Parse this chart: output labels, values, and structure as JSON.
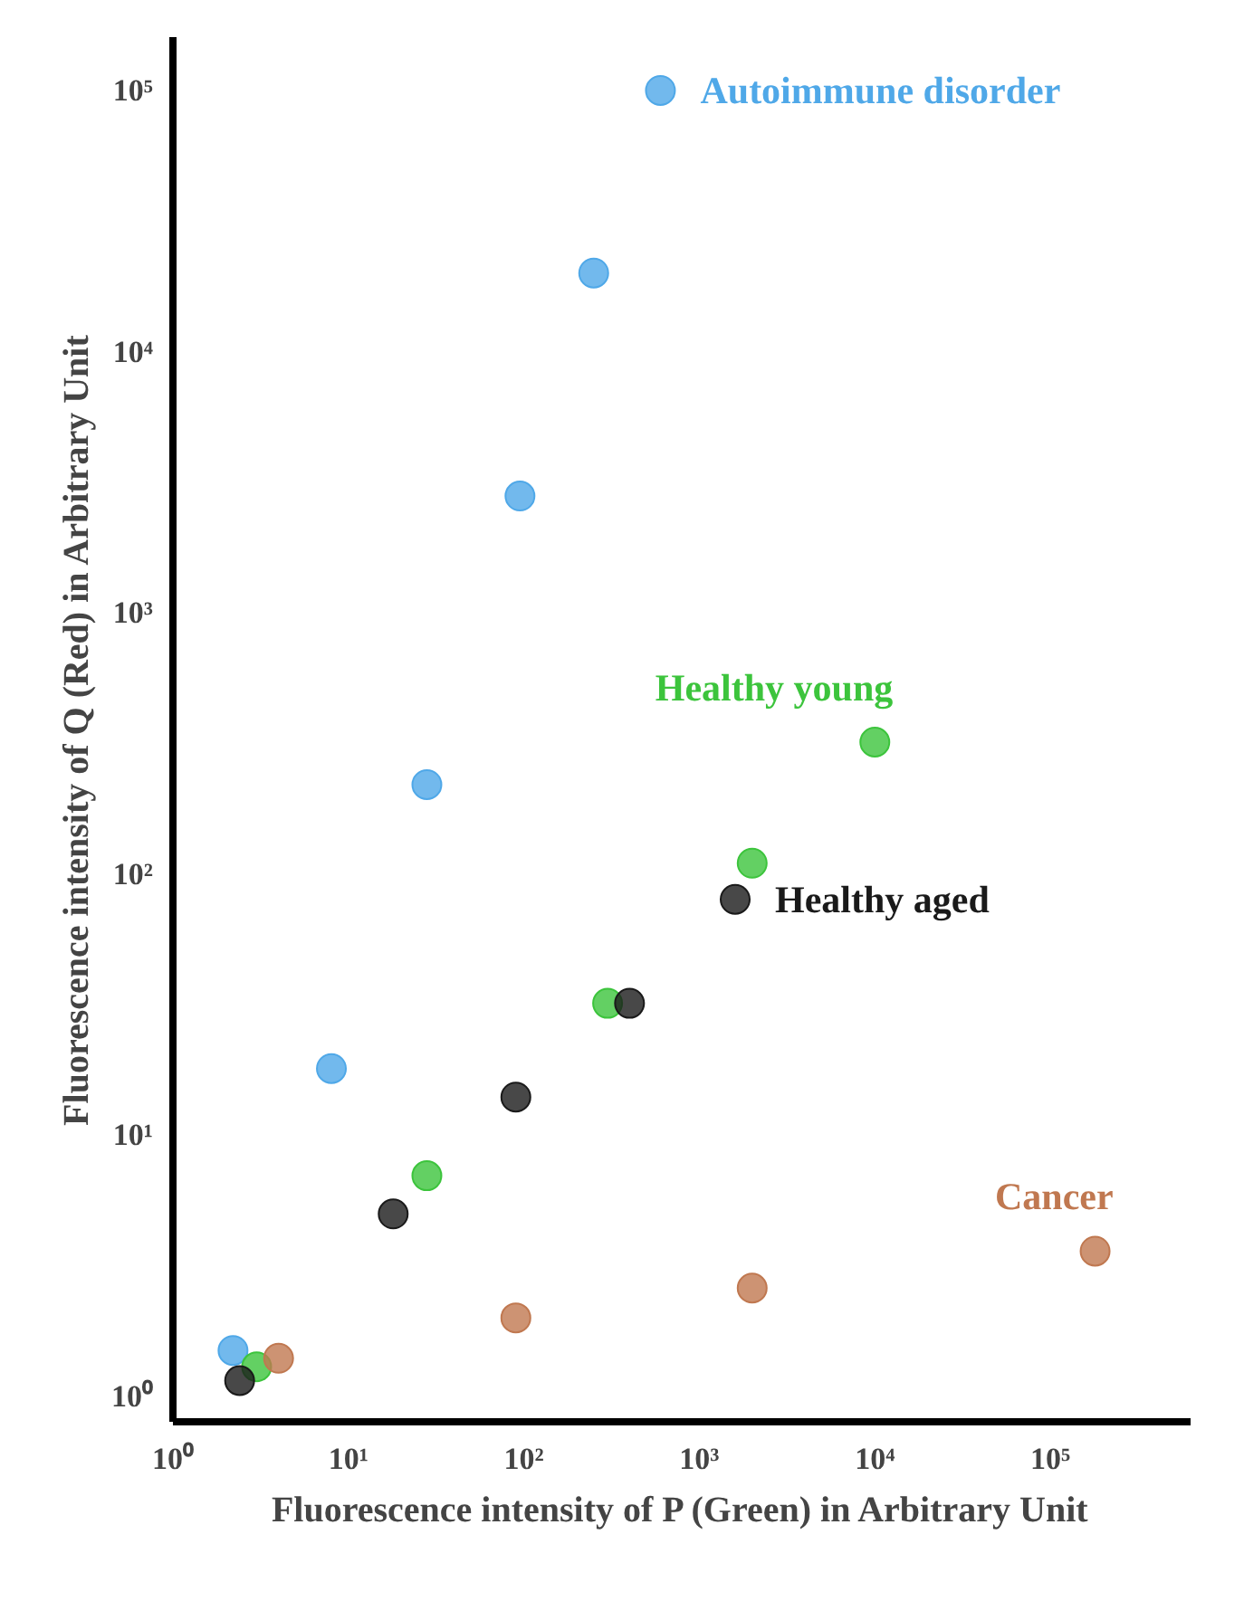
{
  "chart_data": {
    "type": "scatter",
    "xlabel": "Fluorescence intensity of P (Green) in Arbitrary Unit",
    "ylabel": "Fluorescence intensity of Q (Red) in Arbitrary Unit",
    "log": "xy",
    "grid": false,
    "marker": "circle",
    "xlim": [
      1,
      630000
    ],
    "ylim": [
      0.8,
      160000
    ],
    "xticks": [
      {
        "value": 1,
        "label": "10⁰"
      },
      {
        "value": 10,
        "label": "10¹"
      },
      {
        "value": 100,
        "label": "10²"
      },
      {
        "value": 1000,
        "label": "10³"
      },
      {
        "value": 10000,
        "label": "10⁴"
      },
      {
        "value": 100000,
        "label": "10⁵"
      }
    ],
    "yticks": [
      {
        "value": 1,
        "label": "10⁰"
      },
      {
        "value": 10,
        "label": "10¹"
      },
      {
        "value": 100,
        "label": "10²"
      },
      {
        "value": 1000,
        "label": "10³"
      },
      {
        "value": 10000,
        "label": "10⁴"
      },
      {
        "value": 100000,
        "label": "10⁵"
      }
    ],
    "series": [
      {
        "name": "Autoimmune disorder",
        "color": "#4fa8e8",
        "x": [
          2.2,
          8,
          28,
          95,
          250,
          600
        ],
        "values": [
          1.5,
          18,
          220,
          2800,
          20000,
          100000
        ]
      },
      {
        "name": "Healthy young",
        "color": "#3cc43c",
        "x": [
          3,
          28,
          300,
          2000,
          10000
        ],
        "values": [
          1.3,
          7,
          32,
          110,
          320
        ]
      },
      {
        "name": "Healthy aged",
        "color": "#1a1a1a",
        "x": [
          2.4,
          18,
          90,
          400,
          1600
        ],
        "values": [
          1.15,
          5,
          14,
          32,
          80
        ]
      },
      {
        "name": "Cancer",
        "color": "#c07850",
        "x": [
          4,
          90,
          2000,
          180000
        ],
        "values": [
          1.4,
          2,
          2.6,
          3.6
        ]
      }
    ]
  }
}
